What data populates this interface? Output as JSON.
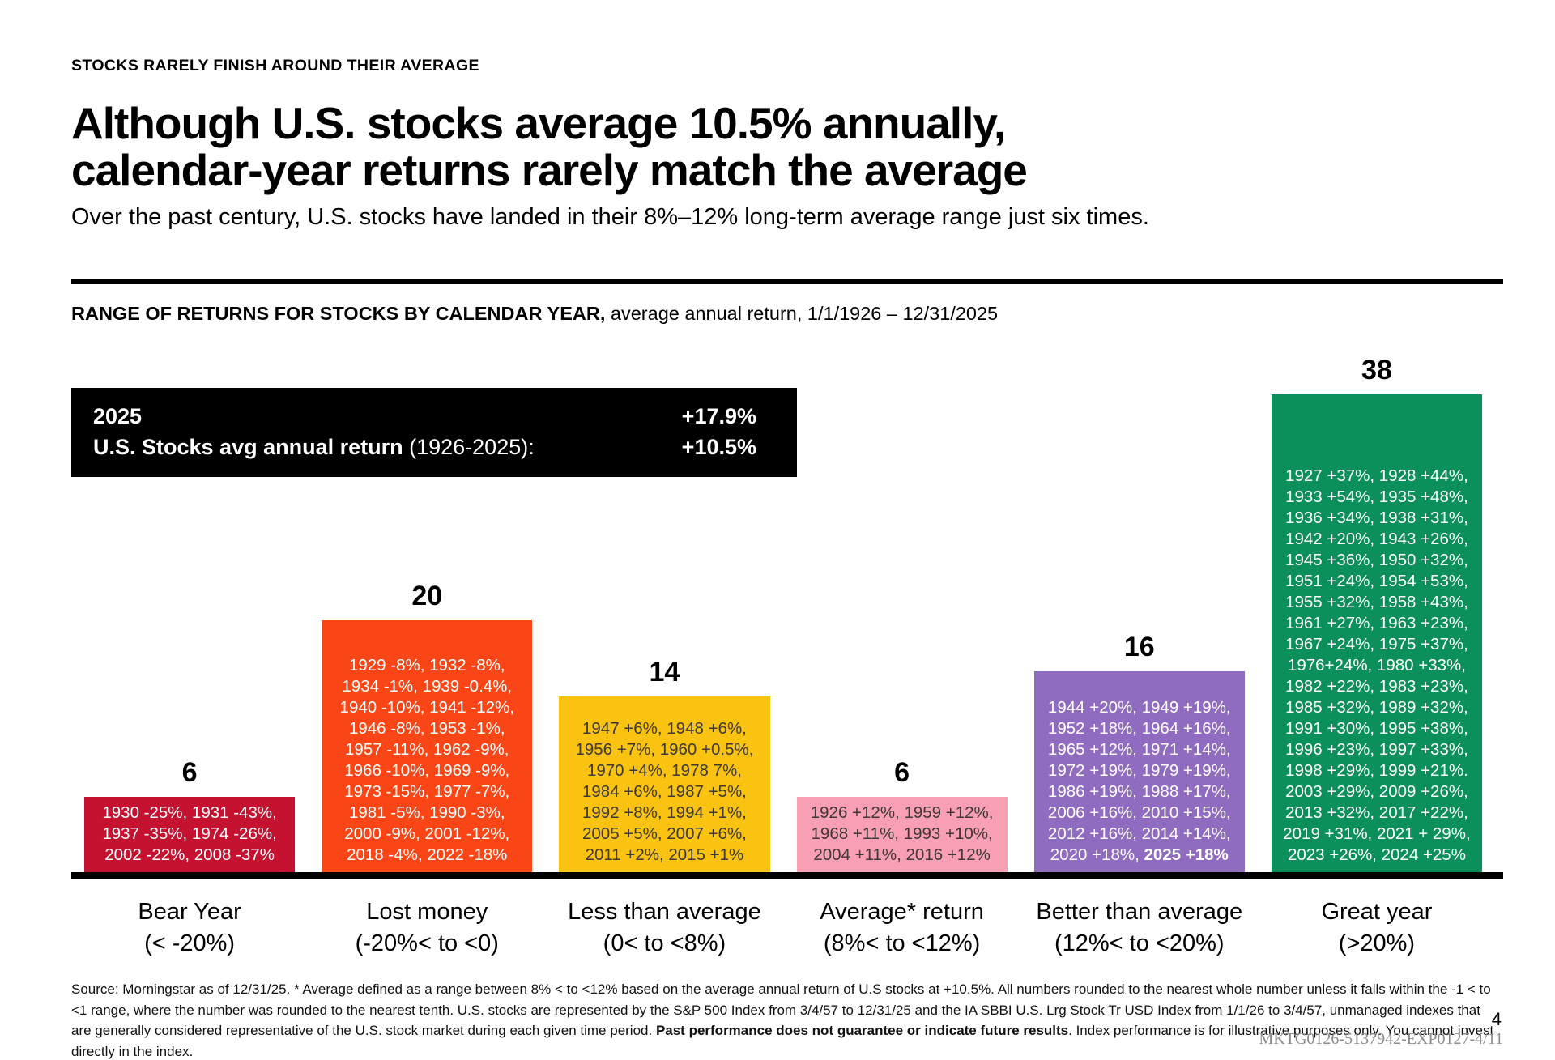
{
  "page": {
    "eyebrow": "STOCKS RARELY FINISH AROUND THEIR AVERAGE",
    "title_line1": "Although U.S. stocks average 10.5% annually,",
    "title_line2": "calendar-year returns rarely match the average",
    "subtitle": "Over the past century, U.S. stocks have landed in their 8%–12% long-term average range just six times.",
    "page_number": "4",
    "doc_code": "MKTG0126-5137942-EXP0127-4/11"
  },
  "chart_header": {
    "bold": "RANGE OF RETURNS FOR STOCKS BY CALENDAR YEAR,",
    "regular": " average annual return, 1/1/1926 – 12/31/2025"
  },
  "info_box": {
    "row1_label": "2025",
    "row1_value": "+17.9%",
    "row2_label_bold": "U.S. Stocks avg annual return",
    "row2_label_regular": " (1926-2025):",
    "row2_value": "+10.5%"
  },
  "chart_data": {
    "type": "bar",
    "title": "RANGE OF RETURNS FOR STOCKS BY CALENDAR YEAR, average annual return, 1/1/1926 – 12/31/2025",
    "categories": [
      "Bear Year (< -20%)",
      "Lost money (-20%< to <0)",
      "Less than average (0< to <8%)",
      "Average* return (8%< to <12%)",
      "Better than average (12%< to <20%)",
      "Great year (>20%)"
    ],
    "values": [
      6,
      20,
      14,
      6,
      16,
      38
    ],
    "ylim": [
      0,
      40
    ],
    "grid": false,
    "legend": "none",
    "bars": [
      {
        "count": 6,
        "label": "Bear Year",
        "range": "(< -20%)",
        "fill": "#C41230",
        "text_color": "#FFFFFF",
        "years": "1930 -25%, 1931 -43%,\n1937 -35%, 1974 -26%,\n2002 -22%, 2008 -37%",
        "years_bold": ""
      },
      {
        "count": 20,
        "label": "Lost money",
        "range": "(-20%< to <0)",
        "fill": "#FA4616",
        "text_color": "#FFFFFF",
        "years": "1929 -8%, 1932 -8%,\n1934 -1%, 1939 -0.4%,\n1940 -10%, 1941 -12%,\n1946 -8%, 1953 -1%,\n1957 -11%, 1962 -9%,\n1966 -10%, 1969 -9%,\n1973 -15%, 1977 -7%,\n1981 -5%, 1990 -3%,\n2000 -9%, 2001 -12%,\n2018 -4%, 2022 -18%",
        "years_bold": ""
      },
      {
        "count": 14,
        "label": "Less than average",
        "range": "(0< to <8%)",
        "fill": "#FBC311",
        "text_color": "#3D3935",
        "years": "1947 +6%, 1948 +6%,\n1956 +7%, 1960 +0.5%,\n1970 +4%, 1978 7%,\n1984 +6%, 1987 +5%,\n1992 +8%, 1994 +1%,\n2005 +5%, 2007 +6%,\n2011 +2%, 2015 +1%",
        "years_bold": ""
      },
      {
        "count": 6,
        "label": "Average* return",
        "range": "(8%< to <12%)",
        "fill": "#F89FB4",
        "text_color": "#3D3935",
        "years": "1926 +12%, 1959 +12%,\n1968 +11%, 1993 +10%,\n2004 +11%, 2016 +12%",
        "years_bold": ""
      },
      {
        "count": 16,
        "label": "Better than average",
        "range": "(12%< to <20%)",
        "fill": "#8F6CC0",
        "text_color": "#FFFFFF",
        "years": "1944 +20%, 1949 +19%,\n1952 +18%, 1964 +16%,\n1965 +12%, 1971 +14%,\n1972 +19%, 1979 +19%,\n1986 +19%, 1988 +17%,\n2006 +16%, 2010 +15%,\n2012 +16%, 2014 +14%,\n2020 +18%, ",
        "years_bold": "2025 +18%"
      },
      {
        "count": 38,
        "label": "Great year",
        "range": "(>20%)",
        "fill": "#0B8F5B",
        "text_color": "#FFFFFF",
        "years": "1927 +37%, 1928 +44%,\n1933 +54%, 1935 +48%,\n1936 +34%, 1938 +31%,\n1942 +20%, 1943 +26%,\n1945 +36%, 1950 +32%,\n1951 +24%, 1954 +53%,\n1955 +32%, 1958 +43%,\n1961 +27%, 1963 +23%,\n1967 +24%, 1975 +37%,\n1976+24%, 1980 +33%,\n1982 +22%, 1983 +23%,\n1985 +32%, 1989 +32%,\n1991 +30%, 1995 +38%,\n1996 +23%, 1997 +33%,\n1998 +29%, 1999 +21%.\n2003 +29%, 2009 +26%,\n2013 +32%, 2017 +22%,\n2019 +31%, 2021 + 29%,\n2023 +26%, 2024 +25%",
        "years_bold": ""
      }
    ]
  },
  "footer": {
    "text1": "Source: Morningstar as of 12/31/25. * Average defined as a range between 8% < to <12% based on the average annual return of U.S stocks at +10.5%. All numbers rounded to the nearest whole number unless it falls within the -1 < to <1 range, where the number was rounded to the nearest tenth. U.S. stocks are represented by the S&P 500 Index from 3/4/57 to 12/31/25 and the IA SBBI U.S. Lrg Stock Tr USD Index from 1/1/26 to 3/4/57, unmanaged indexes that are generally considered representative of the U.S. stock market during each given time period. ",
    "bold": "Past performance does not guarantee or indicate future results",
    "text2": ". Index performance is for illustrative purposes only. You cannot invest directly in the index."
  }
}
